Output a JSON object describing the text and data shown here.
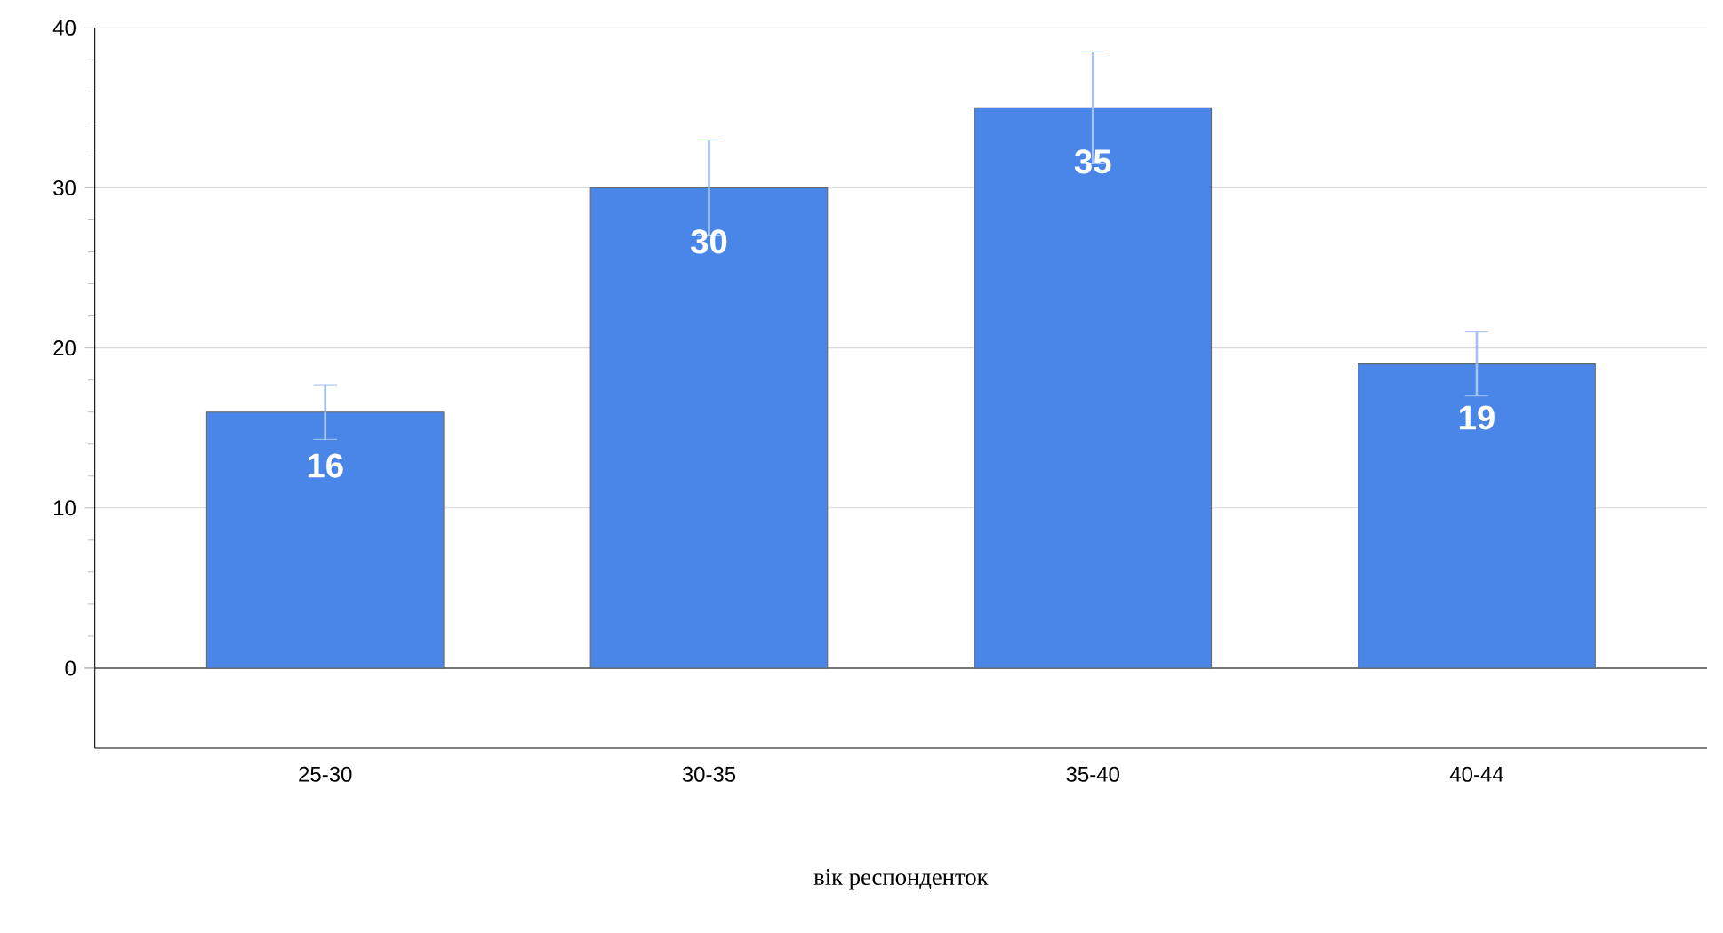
{
  "chart_data": {
    "type": "bar",
    "xlabel": "вік респонденток",
    "categories": [
      "25-30",
      "30-35",
      "35-40",
      "40-44"
    ],
    "values": [
      16,
      30,
      35,
      19
    ],
    "errors": [
      1.7,
      3,
      3.5,
      2
    ],
    "color": "#4a86e8",
    "data_labels": true,
    "ylim": [
      -5,
      40
    ],
    "yticks": [
      0,
      10,
      20,
      30,
      40
    ],
    "grid": "y"
  }
}
